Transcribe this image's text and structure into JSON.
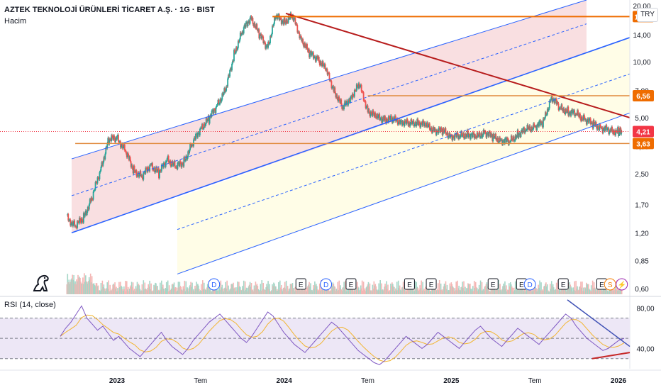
{
  "header": {
    "title": "AZTEK TEKNOLOJİ ÜRÜNLERİ TİCARET A.Ş. · 1G · BIST",
    "volume_label": "Hacim",
    "currency": "TRY"
  },
  "rsi": {
    "label": "RSI (14, close)",
    "ticks": [
      {
        "value": 80,
        "label": "80,00"
      },
      {
        "value": 40,
        "label": "40,00"
      }
    ],
    "levels": [
      70,
      50,
      30
    ],
    "series": [
      52,
      60,
      66,
      74,
      82,
      70,
      64,
      58,
      62,
      55,
      48,
      52,
      46,
      40,
      36,
      32,
      38,
      44,
      50,
      56,
      48,
      42,
      38,
      34,
      40,
      48,
      54,
      60,
      66,
      70,
      74,
      68,
      62,
      56,
      50,
      46,
      52,
      60,
      68,
      76,
      72,
      64,
      56,
      50,
      44,
      40,
      36,
      42,
      48,
      54,
      60,
      66,
      62,
      56,
      50,
      44,
      38,
      34,
      30,
      26,
      24,
      28,
      34,
      40,
      46,
      52,
      48,
      44,
      40,
      44,
      50,
      56,
      52,
      48,
      44,
      40,
      46,
      52,
      58,
      62,
      56,
      50,
      46,
      42,
      48,
      54,
      60,
      56,
      52,
      48,
      44,
      50,
      56,
      62,
      68,
      74,
      70,
      62,
      56,
      50,
      46,
      42,
      38,
      40,
      44,
      48,
      50
    ],
    "colors": {
      "line": "#7e57c2",
      "ma": "#f2b530",
      "band": "#ede7f6"
    }
  },
  "chart_data": {
    "type": "line",
    "title": "AZTEK TEKNOLOJİ ÜRÜNLERİ TİCARET A.Ş. · 1G · BIST",
    "y_scale": "log",
    "ylim": [
      0.56,
      21.5
    ],
    "y_ticks": [
      {
        "value": 20.0,
        "label": "20,00"
      },
      {
        "value": 14.0,
        "label": "14,00"
      },
      {
        "value": 10.0,
        "label": "10,00"
      },
      {
        "value": 7.0,
        "label": "7,00"
      },
      {
        "value": 5.0,
        "label": "5,00"
      },
      {
        "value": 3.5,
        "label": "3,50"
      },
      {
        "value": 2.5,
        "label": "2,50"
      },
      {
        "value": 1.7,
        "label": "1,70"
      },
      {
        "value": 1.2,
        "label": "1,20"
      },
      {
        "value": 0.85,
        "label": "0,85"
      },
      {
        "value": 0.6,
        "label": "0,60"
      }
    ],
    "x_ticks": [
      "2023",
      "Tem",
      "2024",
      "Tem",
      "2025",
      "Tem",
      "2026"
    ],
    "x_tick_positions": [
      0.0,
      0.5,
      1.0,
      1.5,
      2.0,
      2.5,
      3.0
    ],
    "series": [
      {
        "x": [
          -0.3,
          -0.25,
          -0.2,
          -0.15,
          -0.1,
          -0.05,
          0.0,
          0.05,
          0.1,
          0.15,
          0.2,
          0.25,
          0.3,
          0.35,
          0.4,
          0.45,
          0.5,
          0.55,
          0.6,
          0.65,
          0.7,
          0.75,
          0.8,
          0.85,
          0.9,
          0.95,
          1.0,
          1.05,
          1.1,
          1.15,
          1.2,
          1.25,
          1.3,
          1.35,
          1.4,
          1.45,
          1.5,
          1.55,
          1.6,
          1.65,
          1.7,
          1.75,
          1.8,
          1.85,
          1.9,
          1.95,
          2.0,
          2.05,
          2.1,
          2.15,
          2.2,
          2.25,
          2.3,
          2.35,
          2.4,
          2.45,
          2.5,
          2.55,
          2.6,
          2.65,
          2.7,
          2.75,
          2.8,
          2.85,
          2.9,
          2.95,
          3.0,
          3.02
        ],
        "values": [
          1.45,
          1.3,
          1.45,
          1.85,
          2.6,
          3.8,
          3.9,
          3.3,
          2.6,
          2.4,
          2.8,
          2.5,
          3.0,
          2.7,
          2.9,
          3.6,
          4.4,
          4.9,
          5.9,
          7.0,
          11.0,
          14.5,
          17.5,
          14.0,
          12.0,
          17.5,
          16.5,
          17.5,
          13.5,
          11.0,
          10.5,
          9.0,
          7.0,
          5.6,
          6.5,
          7.5,
          5.5,
          5.0,
          4.95,
          4.85,
          4.8,
          4.6,
          4.75,
          4.5,
          4.3,
          4.2,
          4.0,
          3.95,
          4.1,
          3.9,
          4.2,
          3.9,
          3.8,
          3.7,
          4.1,
          4.3,
          4.5,
          4.7,
          6.5,
          5.6,
          5.4,
          5.2,
          4.9,
          4.6,
          4.4,
          4.25,
          4.2,
          4.21
        ]
      }
    ],
    "price_labels": [
      {
        "value": 17.51,
        "label": "17,51",
        "color": "#ef6c00"
      },
      {
        "value": 6.56,
        "label": "6,56",
        "color": "#ef6c00"
      },
      {
        "value": 4.21,
        "label": "4,21",
        "color": "#f23645"
      },
      {
        "value": 3.63,
        "label": "3,63",
        "color": "#ef6c00"
      }
    ],
    "horizontal_lines": [
      {
        "value": 17.51,
        "x_from": 0.93,
        "color": "#ef6c00"
      },
      {
        "value": 6.56,
        "x_from": 1.5,
        "color": "#e08a3c"
      },
      {
        "value": 3.63,
        "x_from": -0.25,
        "color": "#e08a3c"
      }
    ],
    "current_price": 4.21,
    "events": [
      {
        "x": 0.58,
        "kind": "D"
      },
      {
        "x": 1.1,
        "kind": "E"
      },
      {
        "x": 1.25,
        "kind": "D"
      },
      {
        "x": 1.4,
        "kind": "E"
      },
      {
        "x": 1.75,
        "kind": "E"
      },
      {
        "x": 1.88,
        "kind": "E"
      },
      {
        "x": 2.25,
        "kind": "E"
      },
      {
        "x": 2.42,
        "kind": "E"
      },
      {
        "x": 2.47,
        "kind": "D"
      },
      {
        "x": 2.67,
        "kind": "E"
      },
      {
        "x": 2.9,
        "kind": "E"
      },
      {
        "x": 2.95,
        "kind": "S"
      },
      {
        "x": 3.02,
        "kind": "⚡"
      }
    ],
    "grid": false,
    "colors": {
      "price": "#26a69a",
      "down": "#ef5350",
      "channel": "#2962ff",
      "red_channel": "#f8d7da",
      "yellow_channel": "#fffde7",
      "trend": "#b71c1c"
    }
  }
}
